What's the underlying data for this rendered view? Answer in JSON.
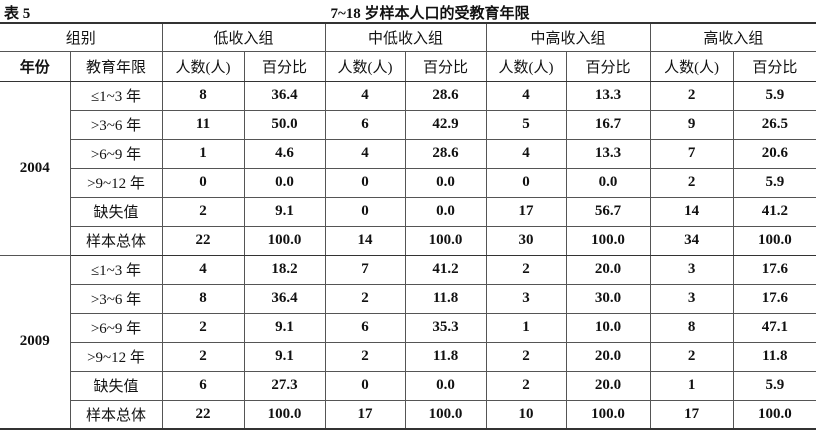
{
  "table_label": "表 5",
  "title": "7~18 岁样本人口的受教育年限",
  "header": {
    "group_label": "组别",
    "groups": [
      "低收入组",
      "中低收入组",
      "中高收入组",
      "高收入组"
    ],
    "year_label": "年份",
    "edu_label": "教育年限",
    "count_label": "人数(人)",
    "pct_label": "百分比"
  },
  "sections": [
    {
      "year": "2004",
      "rows": [
        {
          "edu": "≤1~3 年",
          "values": [
            "8",
            "36.4",
            "4",
            "28.6",
            "4",
            "13.3",
            "2",
            "5.9"
          ]
        },
        {
          "edu": ">3~6 年",
          "values": [
            "11",
            "50.0",
            "6",
            "42.9",
            "5",
            "16.7",
            "9",
            "26.5"
          ]
        },
        {
          "edu": ">6~9 年",
          "values": [
            "1",
            "4.6",
            "4",
            "28.6",
            "4",
            "13.3",
            "7",
            "20.6"
          ]
        },
        {
          "edu": ">9~12 年",
          "values": [
            "0",
            "0.0",
            "0",
            "0.0",
            "0",
            "0.0",
            "2",
            "5.9"
          ]
        },
        {
          "edu": "缺失值",
          "values": [
            "2",
            "9.1",
            "0",
            "0.0",
            "17",
            "56.7",
            "14",
            "41.2"
          ]
        },
        {
          "edu": "样本总体",
          "values": [
            "22",
            "100.0",
            "14",
            "100.0",
            "30",
            "100.0",
            "34",
            "100.0"
          ]
        }
      ]
    },
    {
      "year": "2009",
      "rows": [
        {
          "edu": "≤1~3 年",
          "values": [
            "4",
            "18.2",
            "7",
            "41.2",
            "2",
            "20.0",
            "3",
            "17.6"
          ]
        },
        {
          "edu": ">3~6 年",
          "values": [
            "8",
            "36.4",
            "2",
            "11.8",
            "3",
            "30.0",
            "3",
            "17.6"
          ]
        },
        {
          "edu": ">6~9 年",
          "values": [
            "2",
            "9.1",
            "6",
            "35.3",
            "1",
            "10.0",
            "8",
            "47.1"
          ]
        },
        {
          "edu": ">9~12 年",
          "values": [
            "2",
            "9.1",
            "2",
            "11.8",
            "2",
            "20.0",
            "2",
            "11.8"
          ]
        },
        {
          "edu": "缺失值",
          "values": [
            "6",
            "27.3",
            "0",
            "0.0",
            "2",
            "20.0",
            "1",
            "5.9"
          ]
        },
        {
          "edu": "样本总体",
          "values": [
            "22",
            "100.0",
            "17",
            "100.0",
            "10",
            "100.0",
            "17",
            "100.0"
          ]
        }
      ]
    }
  ]
}
